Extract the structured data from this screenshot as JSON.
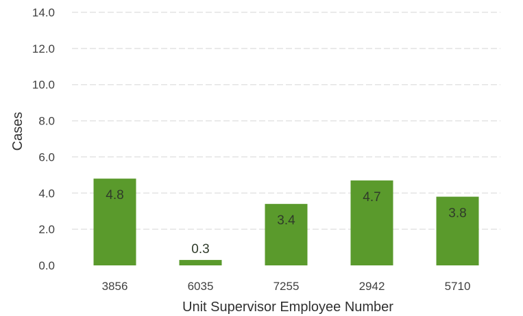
{
  "chart_data": {
    "type": "bar",
    "title": "",
    "xlabel": "Unit Supervisor Employee Number",
    "ylabel": "Cases",
    "categories": [
      "3856",
      "6035",
      "7255",
      "2942",
      "5710"
    ],
    "values": [
      4.8,
      0.3,
      3.4,
      4.7,
      3.8
    ],
    "value_labels": [
      "4.8",
      "0.3",
      "3.4",
      "4.7",
      "3.8"
    ],
    "ylim": [
      0,
      14
    ],
    "yticks": [
      "0.0",
      "2.0",
      "4.0",
      "6.0",
      "8.0",
      "10.0",
      "12.0",
      "14.0"
    ],
    "grid": true,
    "legend": "none",
    "bar_color": "#5a9a2c"
  }
}
